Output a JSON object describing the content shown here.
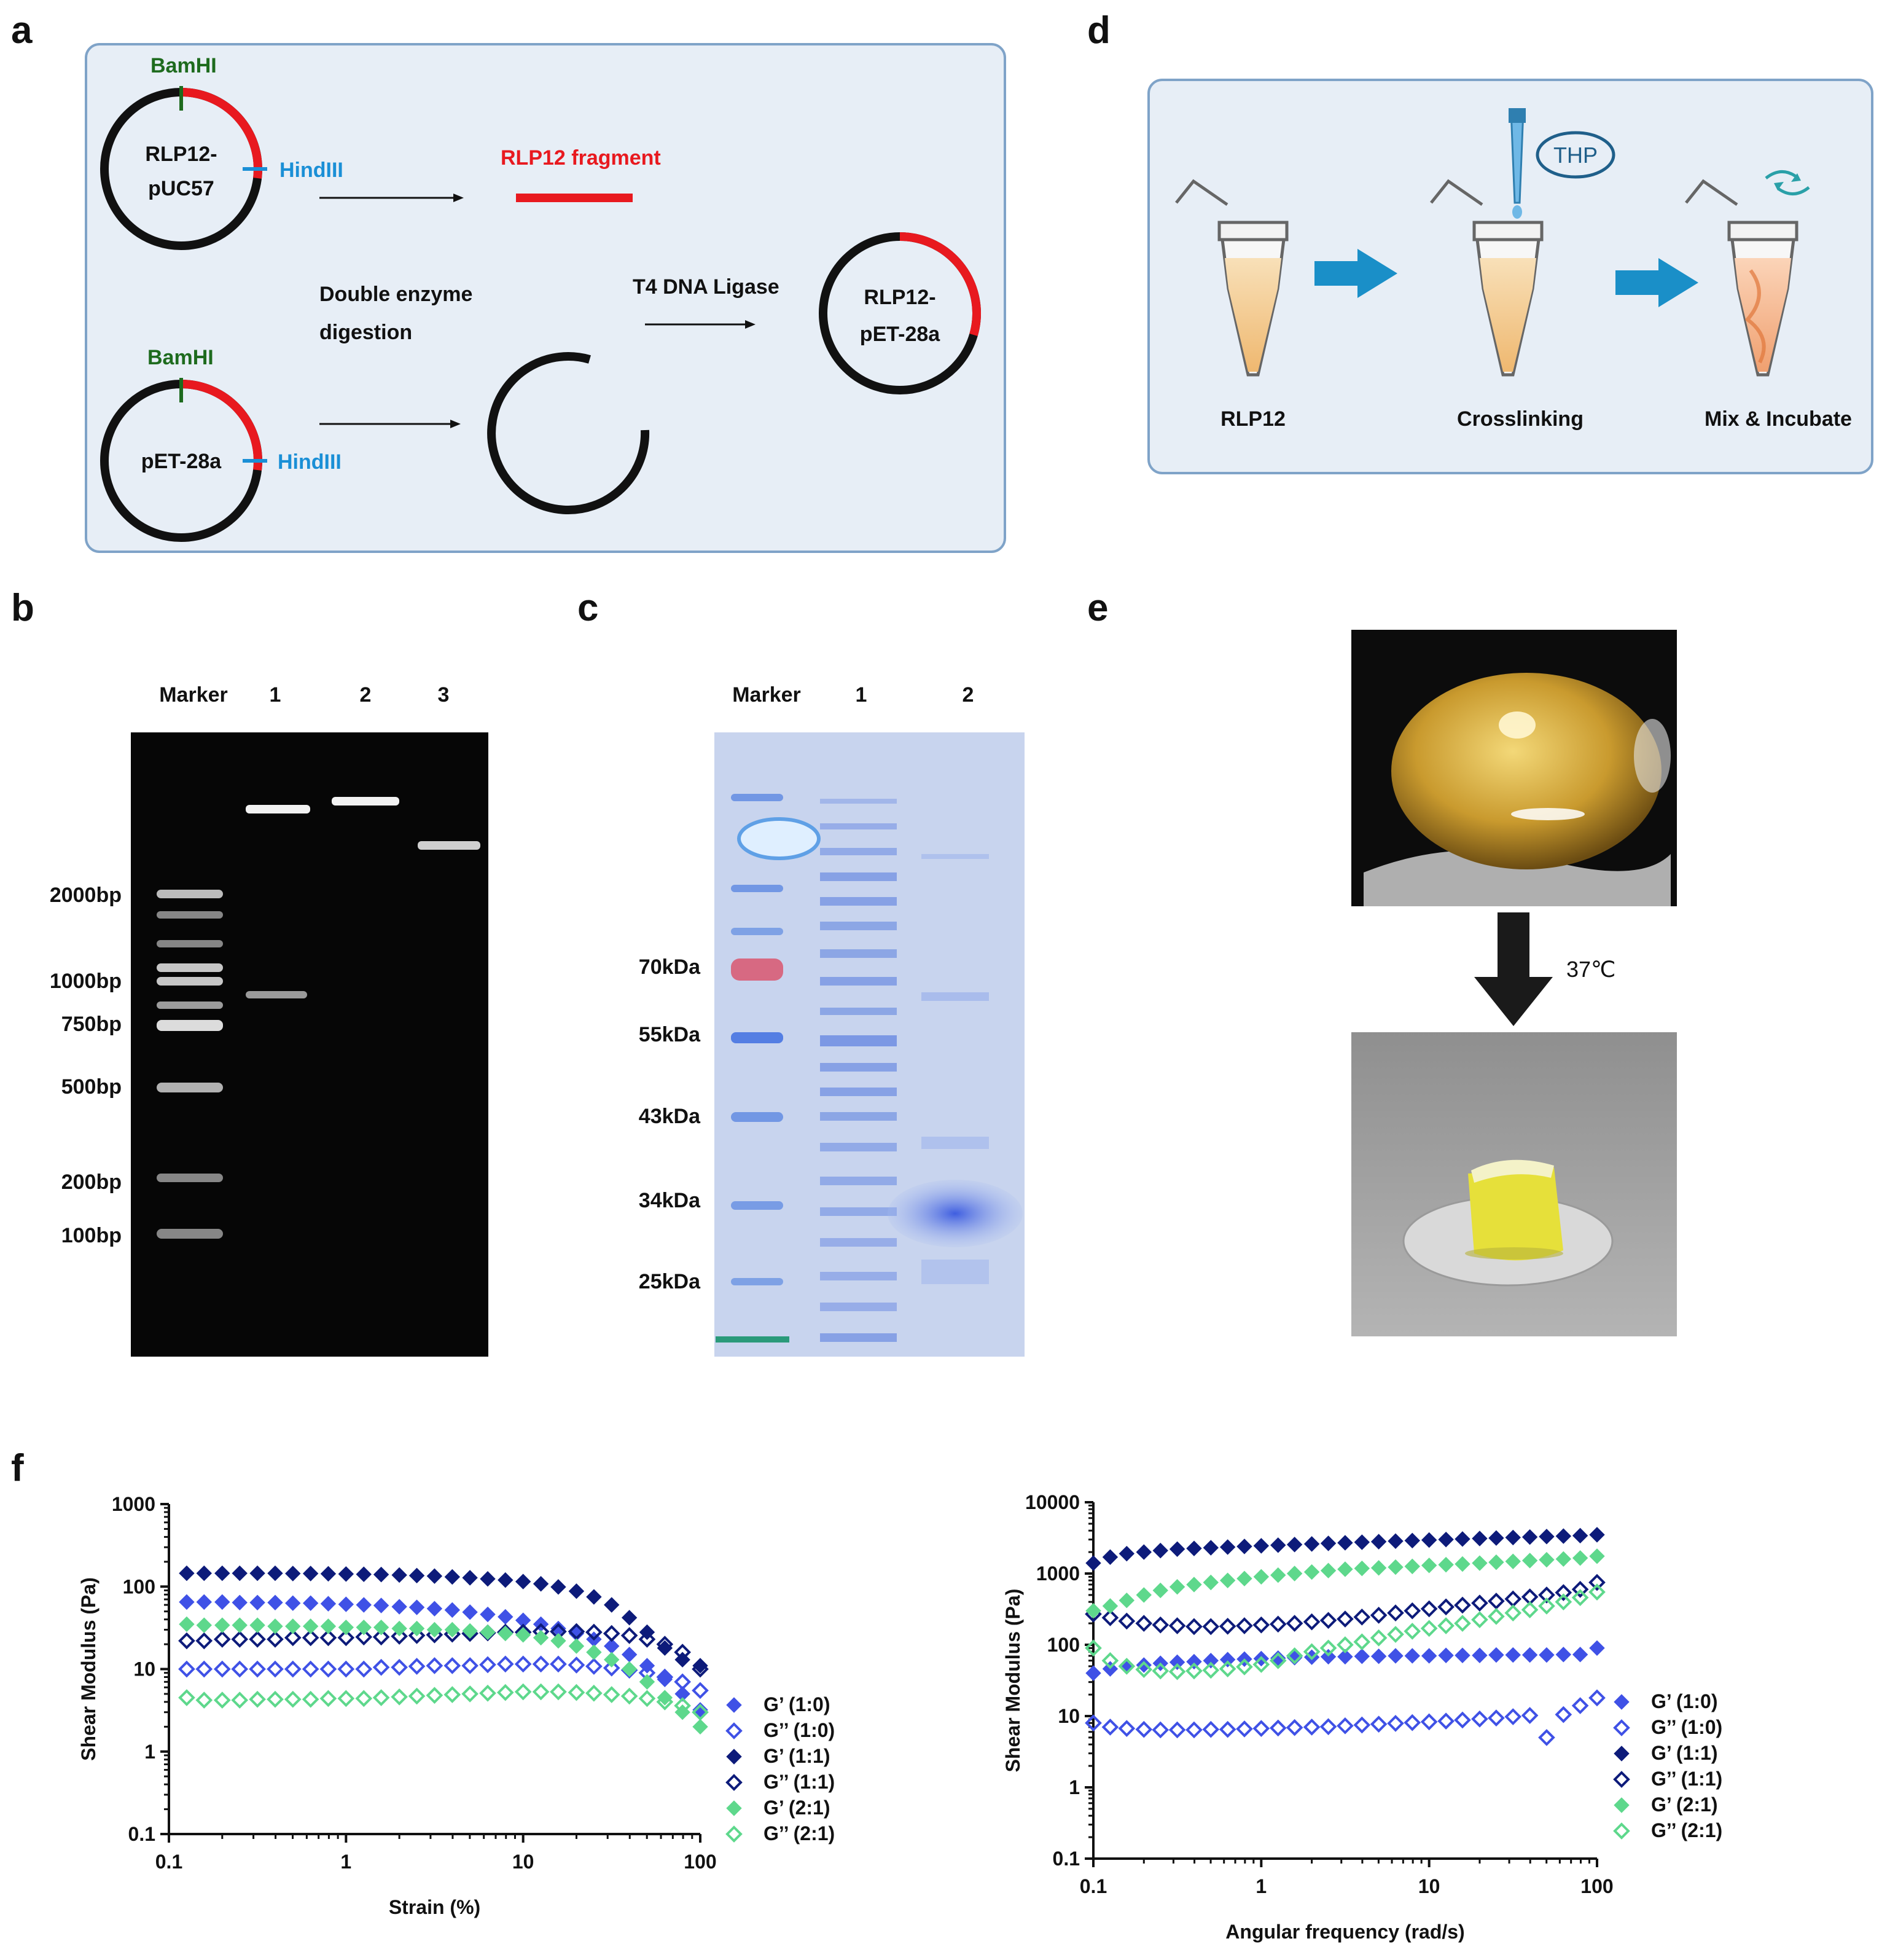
{
  "panels": {
    "a": "a",
    "b": "b",
    "c": "c",
    "d": "d",
    "e": "e",
    "f": "f"
  },
  "panel_a": {
    "top_plasmid": [
      "RLP12-",
      "pUC57"
    ],
    "bottom_plasmid": "pET-28a",
    "enzyme_bam": "BamHI",
    "enzyme_hind": "HindIII",
    "fragment": "RLP12 fragment",
    "digestion": [
      "Double enzyme",
      "digestion"
    ],
    "ligase": "T4 DNA Ligase",
    "product": [
      "RLP12-",
      "pET-28a"
    ]
  },
  "panel_b": {
    "lanes": [
      "Marker",
      "1",
      "2",
      "3"
    ],
    "ladder": [
      "2000bp",
      "1000bp",
      "750bp",
      "500bp",
      "200bp",
      "100bp"
    ]
  },
  "panel_c": {
    "lanes": [
      "Marker",
      "1",
      "2"
    ],
    "ladder": [
      "70kDa",
      "55kDa",
      "43kDa",
      "34kDa",
      "25kDa"
    ]
  },
  "panel_d": {
    "steps": [
      "RLP12",
      "Crosslinking",
      "Mix & Incubate"
    ],
    "reagent": "THP"
  },
  "panel_e": {
    "temperature": "37℃"
  },
  "colors": {
    "g1_0": "#3f51e6",
    "g1_1": "#0d1b7a",
    "g2_1": "#5ed88c",
    "red": "#e8191f",
    "blue": "#1a8fd6",
    "green": "#1e6b1e",
    "panel_bg": "#e7eef6"
  },
  "chart_data": [
    {
      "type": "scatter",
      "title": "",
      "xlabel": "Strain (%)",
      "ylabel": "Shear Modulus (Pa)",
      "xscale": "log",
      "yscale": "log",
      "xlim": [
        0.1,
        100
      ],
      "ylim": [
        0.1,
        1000
      ],
      "xticks": [
        "0.1",
        "1",
        "10",
        "100"
      ],
      "yticks": [
        "0.1",
        "1",
        "10",
        "100",
        "1000"
      ],
      "x": [
        0.126,
        0.158,
        0.2,
        0.251,
        0.316,
        0.398,
        0.501,
        0.631,
        0.794,
        1.0,
        1.26,
        1.58,
        2.0,
        2.51,
        3.16,
        3.98,
        5.01,
        6.31,
        7.94,
        10.0,
        12.6,
        15.8,
        20.0,
        25.1,
        31.6,
        39.8,
        50.1,
        63.1,
        79.4,
        100
      ],
      "series": [
        {
          "name": "G’ (1:0)",
          "marker": "filled",
          "color": "#3f51e6",
          "values": [
            65,
            65,
            65,
            64,
            64,
            64,
            63,
            63,
            62,
            61,
            60,
            59,
            57,
            56,
            54,
            52,
            49,
            46,
            43,
            39,
            35,
            31,
            27,
            23,
            19,
            15,
            11,
            7.5,
            5.0,
            3.2
          ]
        },
        {
          "name": "G’’ (1:0)",
          "marker": "hollow",
          "color": "#3f51e6",
          "values": [
            10,
            10,
            10,
            10,
            10,
            10,
            10,
            10,
            10,
            10,
            10,
            10.5,
            10.5,
            10.8,
            11,
            11,
            11,
            11.3,
            11.5,
            11.5,
            11.5,
            11.5,
            11.2,
            10.8,
            10.3,
            9.7,
            9.0,
            8.0,
            7.0,
            5.5
          ]
        },
        {
          "name": "G’ (1:1)",
          "marker": "filled",
          "color": "#0d1b7a",
          "values": [
            145,
            145,
            145,
            145,
            145,
            145,
            144,
            144,
            143,
            142,
            141,
            140,
            138,
            136,
            134,
            131,
            128,
            124,
            120,
            115,
            108,
            99,
            88,
            75,
            60,
            42,
            28,
            18,
            13,
            11
          ]
        },
        {
          "name": "G’’ (1:1)",
          "marker": "hollow",
          "color": "#0d1b7a",
          "values": [
            22,
            22,
            23,
            23,
            23,
            23,
            24,
            24,
            24,
            24,
            24.5,
            24.5,
            25,
            25.5,
            26,
            26.5,
            27,
            27.5,
            28,
            28,
            28.5,
            28.5,
            28.5,
            28,
            27,
            25.5,
            23,
            20,
            16,
            10
          ]
        },
        {
          "name": "G’ (2:1)",
          "marker": "filled",
          "color": "#5ed88c",
          "values": [
            35,
            34,
            34,
            34,
            34,
            33,
            33,
            33,
            33,
            32,
            32,
            32,
            31,
            31,
            30,
            30,
            29,
            28,
            27,
            26,
            24,
            22,
            19,
            16,
            13,
            10,
            7,
            4.5,
            3,
            2
          ]
        },
        {
          "name": "G’’ (2:1)",
          "marker": "hollow",
          "color": "#5ed88c",
          "values": [
            4.5,
            4.2,
            4.2,
            4.2,
            4.3,
            4.3,
            4.3,
            4.3,
            4.4,
            4.4,
            4.4,
            4.5,
            4.6,
            4.7,
            4.8,
            4.9,
            5.0,
            5.1,
            5.2,
            5.3,
            5.3,
            5.3,
            5.2,
            5.1,
            4.9,
            4.7,
            4.4,
            4.0,
            3.6,
            3.0
          ]
        }
      ]
    },
    {
      "type": "scatter",
      "title": "",
      "xlabel": "Angular frequency (rad/s)",
      "ylabel": "Shear Modulus (Pa)",
      "xscale": "log",
      "yscale": "log",
      "xlim": [
        0.1,
        100
      ],
      "ylim": [
        0.1,
        10000
      ],
      "xticks": [
        "0.1",
        "1",
        "10",
        "100"
      ],
      "yticks": [
        "0.1",
        "1",
        "10",
        "100",
        "1000",
        "10000"
      ],
      "x": [
        0.1,
        0.126,
        0.158,
        0.2,
        0.251,
        0.316,
        0.398,
        0.501,
        0.631,
        0.794,
        1.0,
        1.26,
        1.58,
        2.0,
        2.51,
        3.16,
        3.98,
        5.01,
        6.31,
        7.94,
        10.0,
        12.6,
        15.8,
        20.0,
        25.1,
        31.6,
        39.8,
        50.1,
        63.1,
        79.4,
        100
      ],
      "series": [
        {
          "name": "G’ (1:0)",
          "marker": "filled",
          "color": "#3f51e6",
          "values": [
            40,
            46,
            50,
            52,
            55,
            57,
            58,
            60,
            62,
            63,
            64,
            65,
            66,
            67,
            68,
            68,
            69,
            69,
            70,
            70,
            70,
            71,
            71,
            71,
            72,
            72,
            72,
            72,
            73,
            73,
            90
          ]
        },
        {
          "name": "G’’ (1:0)",
          "marker": "hollow",
          "color": "#3f51e6",
          "values": [
            8,
            7,
            6.7,
            6.5,
            6.4,
            6.4,
            6.4,
            6.5,
            6.5,
            6.6,
            6.7,
            6.8,
            6.9,
            7,
            7.1,
            7.3,
            7.5,
            7.7,
            7.9,
            8.1,
            8.3,
            8.5,
            8.8,
            9.1,
            9.4,
            9.8,
            10.2,
            5,
            10.5,
            14,
            18
          ]
        },
        {
          "name": "G’ (1:1)",
          "marker": "filled",
          "color": "#0d1b7a",
          "values": [
            1400,
            1700,
            1900,
            2000,
            2100,
            2200,
            2250,
            2300,
            2350,
            2400,
            2450,
            2500,
            2550,
            2600,
            2650,
            2700,
            2750,
            2800,
            2850,
            2900,
            2950,
            3000,
            3050,
            3100,
            3150,
            3200,
            3250,
            3300,
            3350,
            3400,
            3500
          ]
        },
        {
          "name": "G’’ (1:1)",
          "marker": "hollow",
          "color": "#0d1b7a",
          "values": [
            270,
            240,
            215,
            200,
            190,
            185,
            180,
            180,
            182,
            185,
            190,
            195,
            200,
            210,
            220,
            230,
            245,
            260,
            280,
            300,
            320,
            340,
            360,
            385,
            410,
            440,
            470,
            500,
            540,
            600,
            750
          ]
        },
        {
          "name": "G’ (2:1)",
          "marker": "filled",
          "color": "#5ed88c",
          "values": [
            300,
            350,
            420,
            500,
            580,
            650,
            700,
            750,
            800,
            850,
            900,
            950,
            1000,
            1050,
            1100,
            1150,
            1180,
            1200,
            1230,
            1260,
            1300,
            1330,
            1360,
            1400,
            1440,
            1480,
            1520,
            1560,
            1600,
            1650,
            1750
          ]
        },
        {
          "name": "G’’ (2:1)",
          "marker": "hollow",
          "color": "#5ed88c",
          "values": [
            90,
            60,
            50,
            45,
            43,
            42,
            43,
            44,
            46,
            49,
            53,
            60,
            70,
            80,
            90,
            100,
            110,
            125,
            140,
            155,
            170,
            185,
            200,
            225,
            250,
            280,
            310,
            350,
            400,
            460,
            550
          ]
        }
      ]
    }
  ]
}
